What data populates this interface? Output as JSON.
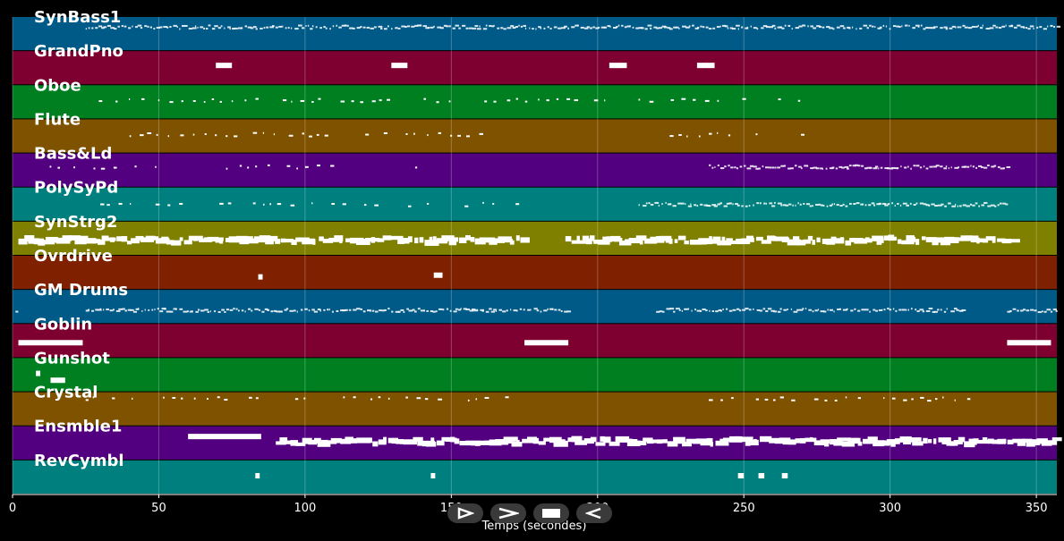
{
  "chart_data": {
    "type": "piano-roll",
    "xlabel": "Temps (secondes)",
    "xlim": [
      0,
      357
    ],
    "xticks": [
      0,
      50,
      100,
      150,
      200,
      250,
      300,
      350
    ],
    "grid": true,
    "tracks": [
      {
        "name": "SynBass1",
        "color": "#005a87",
        "notes": [
          [
            25,
            357,
            0.3,
            "dense"
          ]
        ]
      },
      {
        "name": "GrandPno",
        "color": "#7d0030",
        "notes": [
          [
            69.5,
            75,
            0.42,
            "block"
          ],
          [
            129.5,
            135,
            0.42,
            "block"
          ],
          [
            204,
            210,
            0.42,
            "block"
          ],
          [
            234,
            240,
            0.42,
            "block"
          ]
        ]
      },
      {
        "name": "Oboe",
        "color": "#007f20",
        "notes": [
          [
            25,
            270,
            0.45,
            "sparse"
          ]
        ]
      },
      {
        "name": "Flute",
        "color": "#7f5200",
        "notes": [
          [
            40,
            160,
            0.45,
            "sparse"
          ],
          [
            220,
            270,
            0.45,
            "sparse"
          ]
        ]
      },
      {
        "name": "Bass&Ld",
        "color": "#52007f",
        "notes": [
          [
            10,
            50,
            0.4,
            "sparse"
          ],
          [
            73,
            110,
            0.4,
            "sparse"
          ],
          [
            133,
            145,
            0.4,
            "sparse"
          ],
          [
            238,
            340,
            0.4,
            "dense"
          ]
        ]
      },
      {
        "name": "PolySyPd",
        "color": "#007f7f",
        "notes": [
          [
            30,
            175,
            0.5,
            "sparse"
          ],
          [
            214,
            340,
            0.5,
            "dense"
          ]
        ]
      },
      {
        "name": "SynStrg2",
        "color": "#7f7f00",
        "notes": [
          [
            2,
            175,
            0.55,
            "thick"
          ],
          [
            189,
            340,
            0.55,
            "thick"
          ]
        ]
      },
      {
        "name": "Ovrdrive",
        "color": "#7f2000",
        "notes": [
          [
            84,
            85.5,
            0.62,
            "block"
          ],
          [
            144,
            147,
            0.57,
            "block"
          ]
        ]
      },
      {
        "name": "GM Drums",
        "color": "#005a87",
        "notes": [
          [
            1,
            2,
            0.6,
            "dense"
          ],
          [
            25,
            190,
            0.6,
            "dense"
          ],
          [
            220,
            325,
            0.6,
            "dense"
          ],
          [
            340,
            357,
            0.6,
            "dense"
          ]
        ]
      },
      {
        "name": "Goblin",
        "color": "#7d0030",
        "notes": [
          [
            2,
            24,
            0.55,
            "block"
          ],
          [
            175,
            190,
            0.55,
            "block"
          ],
          [
            340,
            355,
            0.55,
            "block"
          ]
        ]
      },
      {
        "name": "Gunshot",
        "color": "#007f20",
        "notes": [
          [
            8,
            9.5,
            0.45,
            "block"
          ],
          [
            13,
            18,
            0.65,
            "block"
          ]
        ]
      },
      {
        "name": "Crystal",
        "color": "#7f5200",
        "notes": [
          [
            25,
            170,
            0.2,
            "sparse"
          ],
          [
            238,
            330,
            0.2,
            "sparse"
          ]
        ]
      },
      {
        "name": "Ensmble1",
        "color": "#52007f",
        "notes": [
          [
            60,
            85,
            0.3,
            "block"
          ],
          [
            90,
            357,
            0.45,
            "thick"
          ]
        ]
      },
      {
        "name": "RevCymbl",
        "color": "#007f7f",
        "notes": [
          [
            83,
            84.5,
            0.45,
            "block"
          ],
          [
            143,
            144.5,
            0.45,
            "block"
          ],
          [
            248,
            250,
            0.45,
            "block"
          ],
          [
            255,
            257,
            0.45,
            "block"
          ],
          [
            263,
            265,
            0.45,
            "block"
          ]
        ]
      }
    ]
  },
  "controls": [
    {
      "icon": "play-icon"
    },
    {
      "icon": "next-icon"
    },
    {
      "icon": "stop-icon"
    },
    {
      "icon": "rewind-icon"
    }
  ]
}
